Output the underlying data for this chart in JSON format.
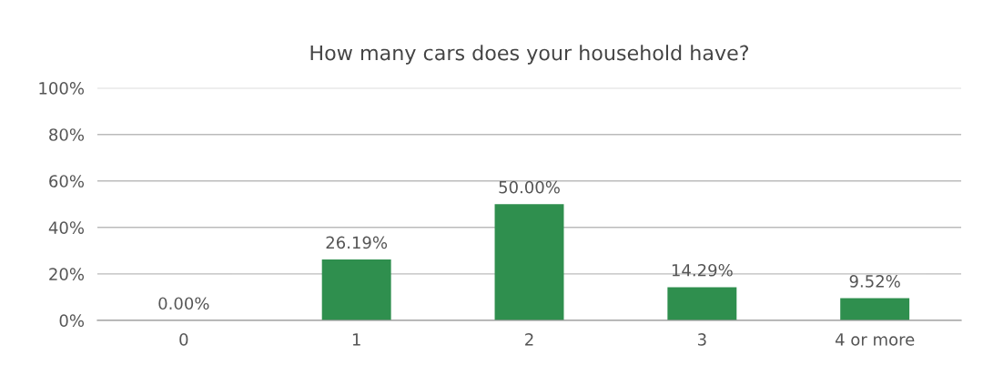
{
  "chart_data": {
    "type": "bar",
    "title": "How many cars does your household have?",
    "categories": [
      "0",
      "1",
      "2",
      "3",
      "4 or more"
    ],
    "values": [
      0,
      26.19,
      50,
      14.29,
      9.52
    ],
    "value_labels": [
      "0.00%",
      "26.19%",
      "50.00%",
      "14.29%",
      "9.52%"
    ],
    "color": "#2f8f4e",
    "ylim": [
      0,
      100
    ],
    "yticks": [
      {
        "value": 0,
        "label": "0%"
      },
      {
        "value": 20,
        "label": "20%"
      },
      {
        "value": 40,
        "label": "40%"
      },
      {
        "value": 60,
        "label": "60%"
      },
      {
        "value": 80,
        "label": "80%"
      },
      {
        "value": 100,
        "label": "100%"
      }
    ],
    "grid": "y"
  }
}
